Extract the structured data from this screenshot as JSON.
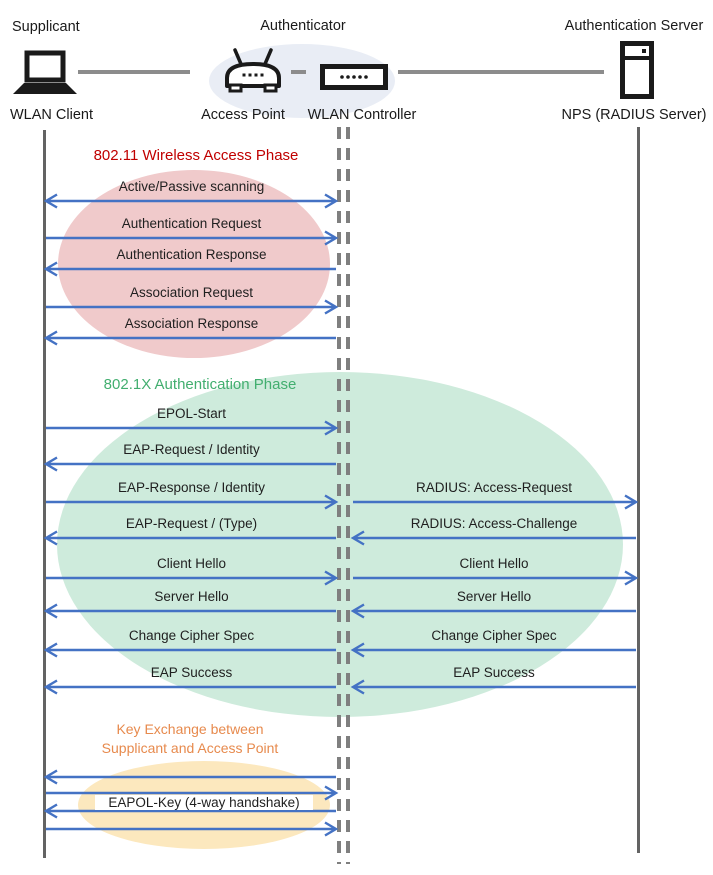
{
  "colors": {
    "arrow": "#4472C4",
    "lifeline": "#636363",
    "dashed_lifeline": "#7F7F7F",
    "connector": "#8C8C8C",
    "authenticator_ellipse": "#E9EDF5",
    "message_text": "#1F1F1F"
  },
  "diagram": {
    "roles": [
      {
        "label": "Supplicant"
      },
      {
        "label": "Authenticator"
      },
      {
        "label": "Authentication Server"
      }
    ],
    "devices": [
      {
        "label": "WLAN Client",
        "icon": "laptop-icon"
      },
      {
        "label": "Access Point",
        "icon": "access-point-icon"
      },
      {
        "label": "WLAN Controller",
        "icon": "wlan-controller-icon"
      },
      {
        "label": "NPS (RADIUS Server)",
        "icon": "server-icon"
      }
    ],
    "phases": [
      {
        "title": "802.11 Wireless Access Phase",
        "title_color": "#C00000",
        "ellipse_color": "#F0CACB",
        "messages": [
          {
            "left": {
              "label": "Active/Passive scanning",
              "dir": "both"
            }
          },
          {
            "left": {
              "label": "Authentication Request",
              "dir": "right"
            }
          },
          {
            "left": {
              "label": "Authentication Response",
              "dir": "left"
            }
          },
          {
            "left": {
              "label": "Association Request",
              "dir": "right"
            }
          },
          {
            "left": {
              "label": "Association Response",
              "dir": "left"
            }
          }
        ]
      },
      {
        "title": "802.1X Authentication Phase",
        "title_color": "#42AE6F",
        "ellipse_color": "#CEEBDC",
        "messages": [
          {
            "left": {
              "label": "EPOL-Start",
              "dir": "right"
            }
          },
          {
            "left": {
              "label": "EAP-Request / Identity",
              "dir": "left"
            }
          },
          {
            "left": {
              "label": "EAP-Response / Identity",
              "dir": "right"
            },
            "right": {
              "label": "RADIUS: Access-Request",
              "dir": "right"
            }
          },
          {
            "left": {
              "label": "EAP-Request / (Type)",
              "dir": "left"
            },
            "right": {
              "label": "RADIUS: Access-Challenge",
              "dir": "left"
            }
          },
          {
            "left": {
              "label": "Client Hello",
              "dir": "right"
            },
            "right": {
              "label": "Client Hello",
              "dir": "right"
            }
          },
          {
            "left": {
              "label": "Server Hello",
              "dir": "left"
            },
            "right": {
              "label": "Server Hello",
              "dir": "left"
            }
          },
          {
            "left": {
              "label": "Change Cipher Spec",
              "dir": "left"
            },
            "right": {
              "label": "Change Cipher Spec",
              "dir": "left"
            }
          },
          {
            "left": {
              "label": "EAP Success",
              "dir": "left"
            },
            "right": {
              "label": "EAP Success",
              "dir": "left"
            }
          }
        ]
      },
      {
        "title": "Key Exchange between\nSupplicant and Access Point",
        "title_color": "#E78A4D",
        "ellipse_color": "#FCE8BE",
        "key_label": "EAPOL-Key (4-way handshake)",
        "messages": [
          {
            "left": {
              "label": "",
              "dir": "left"
            }
          },
          {
            "left": {
              "label": "",
              "dir": "right"
            }
          },
          {
            "left": {
              "label": "",
              "dir": "left"
            }
          },
          {
            "left": {
              "label": "",
              "dir": "right"
            }
          }
        ]
      }
    ]
  }
}
